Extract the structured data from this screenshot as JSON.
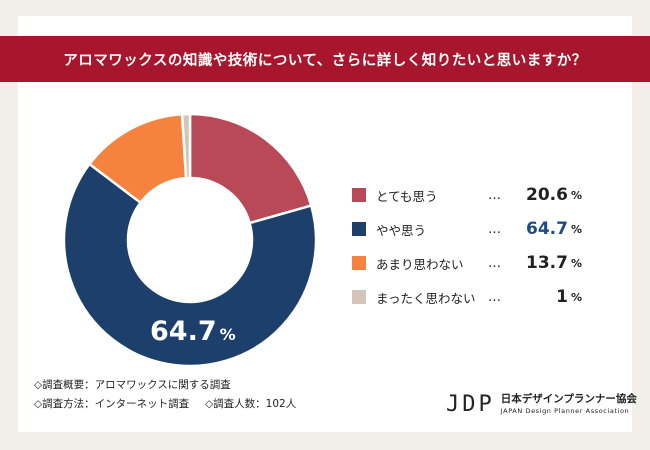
{
  "title": "アロマワックスの知識や技術について、さらに詳しく知りたいと思いますか？",
  "chart_data": {
    "type": "pie",
    "donut": true,
    "categories": [
      "とても思う",
      "やや思う",
      "あまり思わない",
      "まったく思わない"
    ],
    "values": [
      20.6,
      64.7,
      13.7,
      1.0
    ],
    "unit": "%",
    "colors": [
      "#b94957",
      "#1d3f6b",
      "#f5833f",
      "#d4c5b8"
    ],
    "highlight_label": "64.7",
    "highlight_index": 1,
    "legend_placement": "right",
    "legend_leader": "…"
  },
  "notes": {
    "line1": "◇調査概要：アロマワックスに関する調査",
    "line2a": "◇調査方法：インターネット調査",
    "line2b": "◇調査人数：102人"
  },
  "logo": {
    "mark": "JDP",
    "jp": "日本デザインプランナー協会",
    "en": "JAPAN Design Planner Association"
  }
}
